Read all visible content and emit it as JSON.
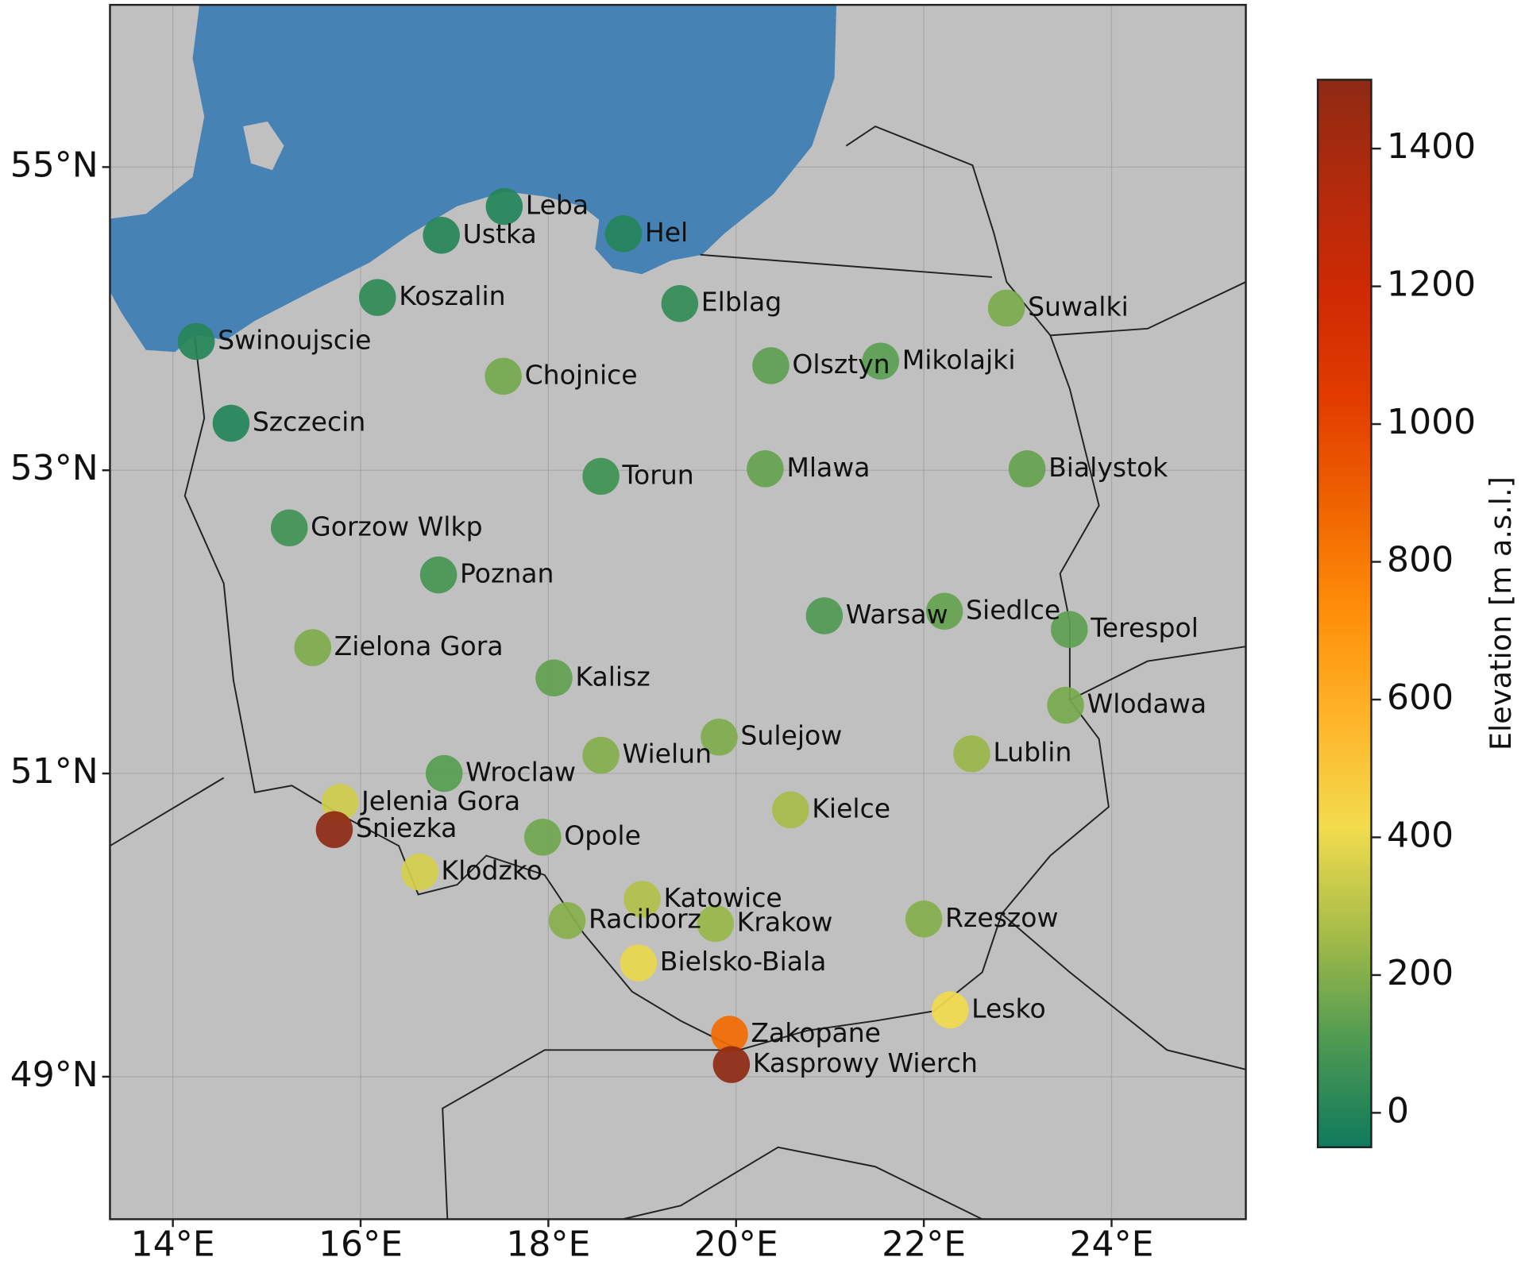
{
  "chart_data": {
    "type": "scatter-map",
    "colorbar_label": "Elevation [m a.s.l.]",
    "clim": [
      -50,
      1500
    ],
    "cticks": [
      0,
      200,
      400,
      600,
      800,
      1000,
      1200,
      1400
    ],
    "colors": [
      "#0f7a5c",
      "#4e9a52",
      "#a6bc48",
      "#f2dc4e",
      "#ffb52a",
      "#ff8f0a",
      "#f06400",
      "#e23c00",
      "#cf2a04",
      "#b32a0c",
      "#8e2a14"
    ],
    "xlim": [
      13.33,
      25.43
    ],
    "ylim": [
      48.06,
      56.07
    ],
    "xticks": [
      {
        "value": 14,
        "label": "14°E"
      },
      {
        "value": 16,
        "label": "16°E"
      },
      {
        "value": 18,
        "label": "18°E"
      },
      {
        "value": 20,
        "label": "20°E"
      },
      {
        "value": 22,
        "label": "22°E"
      },
      {
        "value": 24,
        "label": "24°E"
      }
    ],
    "yticks": [
      {
        "value": 49,
        "label": "49°N"
      },
      {
        "value": 51,
        "label": "51°N"
      },
      {
        "value": 53,
        "label": "53°N"
      },
      {
        "value": 55,
        "label": "55°N"
      }
    ],
    "grid": true,
    "stations": [
      {
        "name": "Leba",
        "lon": 17.53,
        "lat": 54.74,
        "elevation": 2
      },
      {
        "name": "Ustka",
        "lon": 16.86,
        "lat": 54.55,
        "elevation": 6
      },
      {
        "name": "Hel",
        "lon": 18.8,
        "lat": 54.56,
        "elevation": 1
      },
      {
        "name": "Koszalin",
        "lon": 16.18,
        "lat": 54.14,
        "elevation": 32
      },
      {
        "name": "Elblag",
        "lon": 19.4,
        "lat": 54.1,
        "elevation": 38
      },
      {
        "name": "Swinoujscie",
        "lon": 14.25,
        "lat": 53.85,
        "elevation": 6
      },
      {
        "name": "Chojnice",
        "lon": 17.52,
        "lat": 53.62,
        "elevation": 172
      },
      {
        "name": "Olsztyn",
        "lon": 20.37,
        "lat": 53.69,
        "elevation": 133
      },
      {
        "name": "Mikolajki",
        "lon": 21.54,
        "lat": 53.72,
        "elevation": 127
      },
      {
        "name": "Suwalki",
        "lon": 22.88,
        "lat": 54.07,
        "elevation": 184
      },
      {
        "name": "Szczecin",
        "lon": 14.62,
        "lat": 53.31,
        "elevation": 1
      },
      {
        "name": "Torun",
        "lon": 18.56,
        "lat": 52.96,
        "elevation": 69
      },
      {
        "name": "Mlawa",
        "lon": 20.31,
        "lat": 53.01,
        "elevation": 147
      },
      {
        "name": "Bialystok",
        "lon": 23.1,
        "lat": 53.01,
        "elevation": 148
      },
      {
        "name": "Gorzow Wlkp",
        "lon": 15.24,
        "lat": 52.62,
        "elevation": 72
      },
      {
        "name": "Poznan",
        "lon": 16.83,
        "lat": 52.31,
        "elevation": 84
      },
      {
        "name": "Warsaw",
        "lon": 20.94,
        "lat": 52.04,
        "elevation": 106
      },
      {
        "name": "Siedlce",
        "lon": 22.22,
        "lat": 52.07,
        "elevation": 146
      },
      {
        "name": "Terespol",
        "lon": 23.55,
        "lat": 51.95,
        "elevation": 133
      },
      {
        "name": "Zielona Gora",
        "lon": 15.49,
        "lat": 51.83,
        "elevation": 192
      },
      {
        "name": "Kalisz",
        "lon": 18.06,
        "lat": 51.63,
        "elevation": 138
      },
      {
        "name": "Wlodawa",
        "lon": 23.51,
        "lat": 51.45,
        "elevation": 177
      },
      {
        "name": "Sulejow",
        "lon": 19.82,
        "lat": 51.24,
        "elevation": 189
      },
      {
        "name": "Lublin",
        "lon": 22.51,
        "lat": 51.13,
        "elevation": 238
      },
      {
        "name": "Wielun",
        "lon": 18.56,
        "lat": 51.12,
        "elevation": 200
      },
      {
        "name": "Wroclaw",
        "lon": 16.89,
        "lat": 51.0,
        "elevation": 120
      },
      {
        "name": "Jelenia Gora",
        "lon": 15.78,
        "lat": 50.81,
        "elevation": 342
      },
      {
        "name": "Sniezka",
        "lon": 15.72,
        "lat": 50.63,
        "elevation": 1603
      },
      {
        "name": "Kielce",
        "lon": 20.58,
        "lat": 50.76,
        "elevation": 261
      },
      {
        "name": "Opole",
        "lon": 17.94,
        "lat": 50.58,
        "elevation": 163
      },
      {
        "name": "Klodzko",
        "lon": 16.63,
        "lat": 50.35,
        "elevation": 356
      },
      {
        "name": "Katowice",
        "lon": 19.0,
        "lat": 50.17,
        "elevation": 284
      },
      {
        "name": "Raciborz",
        "lon": 18.2,
        "lat": 50.03,
        "elevation": 206
      },
      {
        "name": "Krakow",
        "lon": 19.78,
        "lat": 50.01,
        "elevation": 237
      },
      {
        "name": "Rzeszow",
        "lon": 22.0,
        "lat": 50.04,
        "elevation": 200
      },
      {
        "name": "Bielsko-Biala",
        "lon": 18.96,
        "lat": 49.75,
        "elevation": 396
      },
      {
        "name": "Lesko",
        "lon": 22.28,
        "lat": 49.44,
        "elevation": 420
      },
      {
        "name": "Zakopane",
        "lon": 19.93,
        "lat": 49.28,
        "elevation": 855
      },
      {
        "name": "Kasprowy Wierch",
        "lon": 19.95,
        "lat": 49.08,
        "elevation": 1991
      }
    ]
  }
}
